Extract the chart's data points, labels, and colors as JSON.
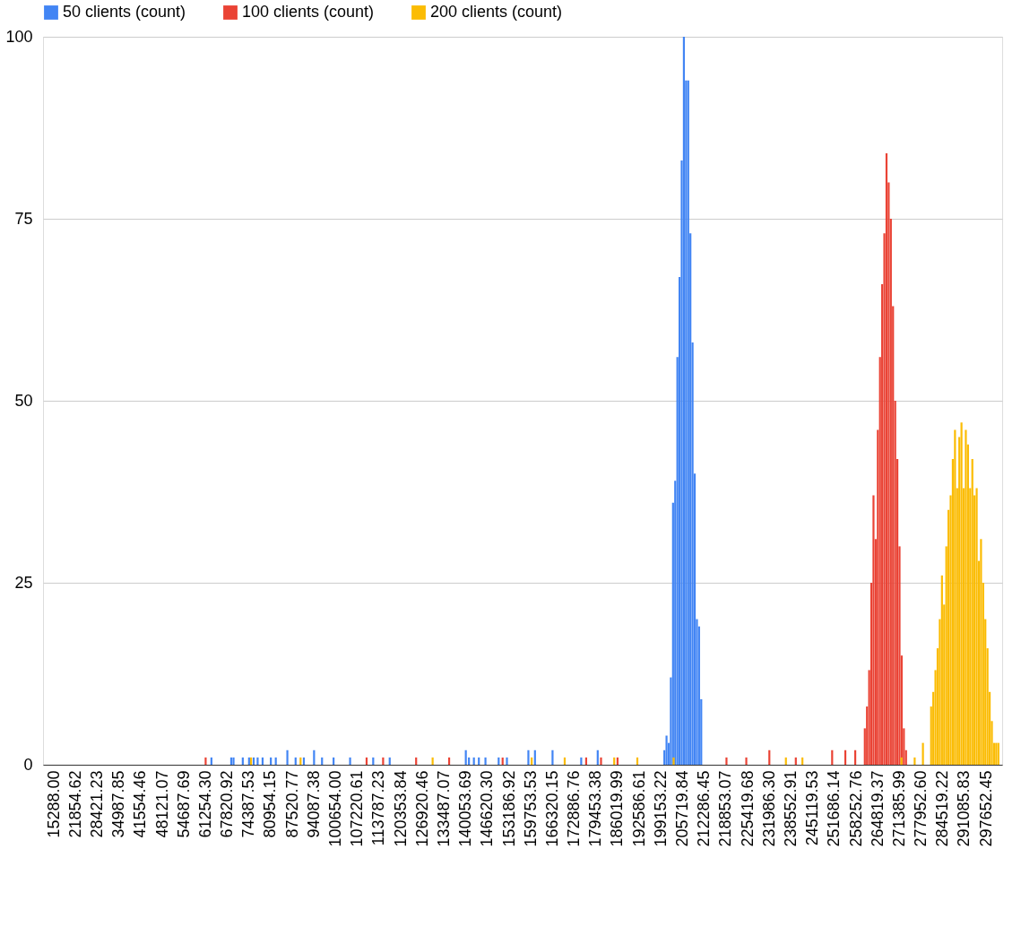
{
  "chart_data": {
    "type": "bar",
    "legend": "top",
    "grid": "y",
    "xlim": [
      12000,
      302500
    ],
    "ylim": [
      0,
      100
    ],
    "yticks": [
      0,
      25,
      50,
      75,
      100
    ],
    "xticks": [
      {
        "value": 15288.0,
        "label": "15288.00"
      },
      {
        "value": 21854.62,
        "label": "21854.62"
      },
      {
        "value": 28421.23,
        "label": "28421.23"
      },
      {
        "value": 34987.85,
        "label": "34987.85"
      },
      {
        "value": 41554.46,
        "label": "41554.46"
      },
      {
        "value": 48121.07,
        "label": "48121.07"
      },
      {
        "value": 54687.69,
        "label": "54687.69"
      },
      {
        "value": 61254.3,
        "label": "61254.30"
      },
      {
        "value": 67820.92,
        "label": "67820.92"
      },
      {
        "value": 74387.53,
        "label": "74387.53"
      },
      {
        "value": 80954.15,
        "label": "80954.15"
      },
      {
        "value": 87520.77,
        "label": "87520.77"
      },
      {
        "value": 94087.38,
        "label": "94087.38"
      },
      {
        "value": 100654.0,
        "label": "100654.00"
      },
      {
        "value": 107220.61,
        "label": "107220.61"
      },
      {
        "value": 113787.23,
        "label": "113787.23"
      },
      {
        "value": 120353.84,
        "label": "120353.84"
      },
      {
        "value": 126920.46,
        "label": "126920.46"
      },
      {
        "value": 133487.07,
        "label": "133487.07"
      },
      {
        "value": 140053.69,
        "label": "140053.69"
      },
      {
        "value": 146620.3,
        "label": "146620.30"
      },
      {
        "value": 153186.92,
        "label": "153186.92"
      },
      {
        "value": 159753.53,
        "label": "159753.53"
      },
      {
        "value": 166320.15,
        "label": "166320.15"
      },
      {
        "value": 172886.76,
        "label": "172886.76"
      },
      {
        "value": 179453.38,
        "label": "179453.38"
      },
      {
        "value": 186019.99,
        "label": "186019.99"
      },
      {
        "value": 192586.61,
        "label": "192586.61"
      },
      {
        "value": 199153.22,
        "label": "199153.22"
      },
      {
        "value": 205719.84,
        "label": "205719.84"
      },
      {
        "value": 212286.45,
        "label": "212286.45"
      },
      {
        "value": 218853.07,
        "label": "218853.07"
      },
      {
        "value": 225419.68,
        "label": "225419.68"
      },
      {
        "value": 231986.3,
        "label": "231986.30"
      },
      {
        "value": 238552.91,
        "label": "238552.91"
      },
      {
        "value": 245119.53,
        "label": "245119.53"
      },
      {
        "value": 251686.14,
        "label": "251686.14"
      },
      {
        "value": 258252.76,
        "label": "258252.76"
      },
      {
        "value": 264819.37,
        "label": "264819.37"
      },
      {
        "value": 271385.99,
        "label": "271385.99"
      },
      {
        "value": 277952.6,
        "label": "277952.60"
      },
      {
        "value": 284519.22,
        "label": "284519.22"
      },
      {
        "value": 291085.83,
        "label": "291085.83"
      },
      {
        "value": 297652.45,
        "label": "297652.45"
      }
    ],
    "series": [
      {
        "name": "50 clients (count)",
        "color": "#4285f4",
        "x": [
          63000,
          69000,
          69700,
          72500,
          74400,
          75800,
          77000,
          78500,
          81000,
          82500,
          86000,
          88500,
          91000,
          94087,
          96500,
          100000,
          105000,
          112000,
          117000,
          140053,
          141000,
          142500,
          144000,
          146000,
          150000,
          152500,
          159000,
          161000,
          166320,
          175000,
          180000,
          200186,
          200843,
          201500,
          202157,
          202814,
          203471,
          204128,
          204785,
          205442,
          206099,
          206756,
          207413,
          208070,
          208727,
          209384,
          210041,
          210698,
          211355
        ],
        "values": [
          1,
          1,
          1,
          1,
          1,
          1,
          1,
          1,
          1,
          1,
          2,
          1,
          1,
          2,
          1,
          1,
          1,
          1,
          1,
          2,
          1,
          1,
          1,
          1,
          1,
          1,
          2,
          2,
          2,
          1,
          2,
          2,
          4,
          3,
          12,
          36,
          39,
          56,
          67,
          83,
          100,
          94,
          94,
          73,
          58,
          40,
          20,
          19,
          9
        ]
      },
      {
        "name": "100 clients (count)",
        "color": "#ea4335",
        "x": [
          61254,
          110000,
          115000,
          125000,
          135000,
          151200,
          176500,
          181000,
          186000,
          219000,
          225000,
          231986,
          240000,
          251000,
          255000,
          258000,
          260900,
          261557,
          262214,
          262871,
          263528,
          264185,
          264842,
          265499,
          266156,
          266813,
          267470,
          268127,
          268784,
          269441,
          270098,
          270755,
          271412,
          272069,
          272726,
          273383
        ],
        "values": [
          1,
          1,
          1,
          1,
          1,
          1,
          1,
          1,
          1,
          1,
          1,
          2,
          1,
          2,
          2,
          2,
          5,
          8,
          13,
          25,
          37,
          31,
          46,
          56,
          66,
          73,
          84,
          80,
          75,
          63,
          50,
          42,
          30,
          15,
          5,
          2
        ]
      },
      {
        "name": "200 clients (count)",
        "color": "#fbbc04",
        "x": [
          75000,
          90000,
          130000,
          160000,
          170000,
          185000,
          192000,
          203000,
          237000,
          242000,
          272000,
          276000,
          278500,
          280980,
          281637,
          282294,
          282951,
          283608,
          284265,
          284922,
          285579,
          286236,
          286893,
          287550,
          288207,
          288864,
          289521,
          290178,
          290835,
          291492,
          292149,
          292806,
          293463,
          294120,
          294777,
          295434,
          296091,
          296748,
          297405,
          298062,
          298719,
          299376,
          300033,
          300690,
          301347
        ],
        "values": [
          1,
          1,
          1,
          1,
          1,
          1,
          1,
          1,
          1,
          1,
          1,
          1,
          3,
          8,
          10,
          13,
          16,
          20,
          26,
          22,
          30,
          35,
          37,
          42,
          46,
          38,
          45,
          47,
          38,
          46,
          44,
          38,
          42,
          37,
          38,
          28,
          31,
          25,
          20,
          16,
          10,
          6,
          3,
          3,
          3
        ]
      }
    ]
  }
}
